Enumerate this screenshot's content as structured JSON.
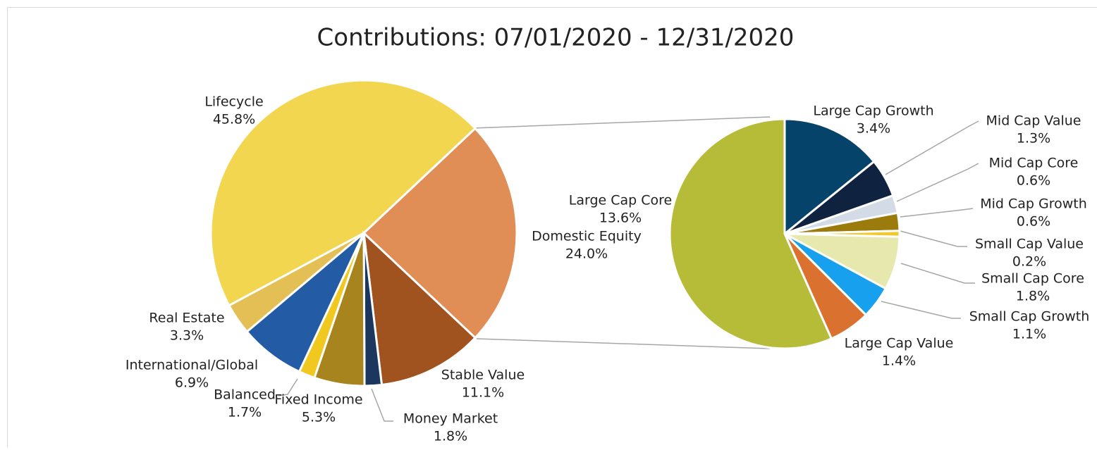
{
  "chart_data": [
    {
      "type": "pie",
      "title": "Contributions: 07/01/2020 - 12/31/2020",
      "categories": [
        "Lifecycle",
        "Domestic Equity",
        "Stable Value",
        "Money Market",
        "Fixed Income",
        "Balanced",
        "International/Global",
        "Real Estate"
      ],
      "values": [
        45.8,
        24.0,
        11.1,
        1.8,
        5.3,
        1.7,
        6.9,
        3.3
      ],
      "value_labels": [
        "45.8%",
        "24.0%",
        "11.1%",
        "1.8%",
        "5.3%",
        "1.7%",
        "6.9%",
        "3.3%"
      ],
      "colors": [
        "#f3d64f",
        "#e08d56",
        "#a0521f",
        "#1b375e",
        "#a8841e",
        "#f1c81f",
        "#235ba4",
        "#e4bf55"
      ]
    },
    {
      "type": "pie",
      "categories": [
        "Large Cap Growth",
        "Mid Cap Value",
        "Mid Cap Core",
        "Mid Cap Growth",
        "Small Cap Value",
        "Small Cap Core",
        "Small Cap Growth",
        "Large Cap Value",
        "Large Cap Core"
      ],
      "values": [
        3.4,
        1.3,
        0.6,
        0.6,
        0.2,
        1.8,
        1.1,
        1.4,
        13.6
      ],
      "value_labels": [
        "3.4%",
        "1.3%",
        "0.6%",
        "0.6%",
        "0.2%",
        "1.8%",
        "1.1%",
        "1.4%",
        "13.6%"
      ],
      "colors": [
        "#06436b",
        "#0f2341",
        "#d3dbe7",
        "#9c7b0d",
        "#f1c830",
        "#e6e8ad",
        "#16a0ee",
        "#da712f",
        "#b6bc38"
      ]
    }
  ]
}
